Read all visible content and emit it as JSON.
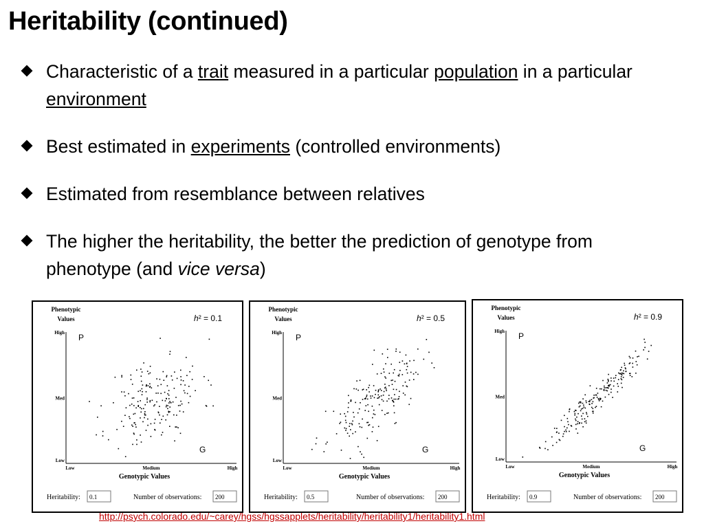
{
  "slide": {
    "title": "Heritability (continued)",
    "bullets": [
      {
        "parts": [
          {
            "text": "Characteristic of a ",
            "u": false
          },
          {
            "text": "trait",
            "u": true
          },
          {
            "text": " measured in a particular ",
            "u": false
          },
          {
            "text": "population",
            "u": true
          },
          {
            "text": " in a particular ",
            "u": false
          },
          {
            "text": "environment",
            "u": true
          }
        ]
      },
      {
        "parts": [
          {
            "text": "Best estimated in ",
            "u": false
          },
          {
            "text": "experiments",
            "u": true
          },
          {
            "text": " (controlled environments)",
            "u": false
          }
        ]
      },
      {
        "parts": [
          {
            "text": "Estimated from resemblance between relatives",
            "u": false
          }
        ]
      },
      {
        "parts": [
          {
            "text": "The higher the heritability, the better the prediction of genotype from phenotype (and ",
            "u": false
          },
          {
            "text": "vice versa",
            "u": false,
            "i": true
          },
          {
            "text": ")",
            "u": false
          }
        ]
      }
    ],
    "link": "http://psych.colorado.edu/~carey/hgss/hgssapplets/heritability/heritability1/heritability1.html"
  },
  "chart_data": [
    {
      "type": "scatter",
      "h2_label": "h² = 0.1",
      "ylabel": "Phenotypic Values",
      "xlabel": "Genotypic Values",
      "x_ticks": [
        "Low",
        "Medium",
        "High"
      ],
      "y_ticks": [
        "High",
        "Med",
        "Low"
      ],
      "p_label": "P",
      "g_label": "G",
      "heritability_label": "Heritability:",
      "heritability_value": "0.1",
      "observations_label": "Number of observations:",
      "observations_value": "200",
      "h2": 0.1,
      "n": 200,
      "seed": 11
    },
    {
      "type": "scatter",
      "h2_label": "h² = 0.5",
      "ylabel": "Phenotypic Values",
      "xlabel": "Genotypic Values",
      "x_ticks": [
        "Low",
        "Medium",
        "High"
      ],
      "y_ticks": [
        "High",
        "Med",
        "Low"
      ],
      "p_label": "P",
      "g_label": "G",
      "heritability_label": "Heritability:",
      "heritability_value": "0.5",
      "observations_label": "Number of observations:",
      "observations_value": "200",
      "h2": 0.5,
      "n": 200,
      "seed": 23
    },
    {
      "type": "scatter",
      "h2_label": "h² = 0.9",
      "ylabel": "Phenotypic Values",
      "xlabel": "Genotypic Values",
      "x_ticks": [
        "Low",
        "Medium",
        "High"
      ],
      "y_ticks": [
        "High",
        "Med",
        "Low"
      ],
      "p_label": "P",
      "g_label": "G",
      "heritability_label": "Heritability:",
      "heritability_value": "0.9",
      "observations_label": "Number of observations:",
      "observations_value": "200",
      "h2": 0.9,
      "n": 200,
      "seed": 37
    }
  ]
}
